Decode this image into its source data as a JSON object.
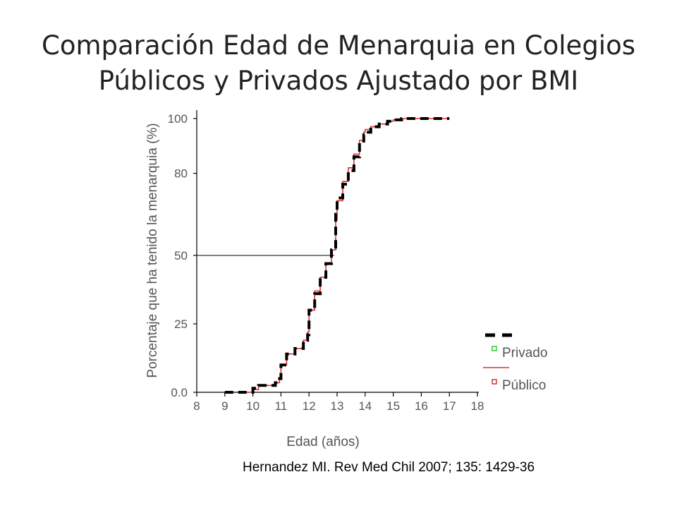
{
  "slide": {
    "title_line1": "Comparación Edad de Menarquia en Colegios",
    "title_line2": "Públicos y Privados Ajustado por BMI",
    "citation": "Hernandez MI. Rev Med Chil 2007; 135: 1429-36"
  },
  "chart_data": {
    "type": "line",
    "title": "",
    "xlabel": "Edad (años)",
    "ylabel": "Porcentaje que ha tenido la menarquia (%)",
    "xlim": [
      8,
      18
    ],
    "ylim": [
      0,
      100
    ],
    "x_ticks": [
      8,
      9,
      10,
      11,
      12,
      13,
      14,
      15,
      16,
      17,
      18
    ],
    "y_ticks": [
      0,
      25,
      50,
      80,
      100
    ],
    "y_tick_labels": [
      "0.0",
      "25",
      "50",
      "80",
      "100"
    ],
    "grid": false,
    "reference_line": {
      "y": 50,
      "x_end": 12.9
    },
    "legend": {
      "placement": "bottom-right",
      "entries": [
        "",
        "Privado",
        "",
        "Público"
      ]
    },
    "colors": {
      "privado": "#000000",
      "publico": "#e03030",
      "marker_privado": "#33cc33",
      "marker_publico": "#e03030",
      "axis": "#000000"
    },
    "series": [
      {
        "name": "Privado",
        "style": "black-dashed-step",
        "x": [
          9.0,
          9.6,
          9.8,
          10.0,
          10.2,
          10.5,
          10.8,
          10.95,
          11.0,
          11.2,
          11.5,
          11.8,
          11.95,
          12.0,
          12.2,
          12.4,
          12.6,
          12.8,
          12.95,
          13.0,
          13.2,
          13.4,
          13.6,
          13.8,
          13.95,
          14.0,
          14.2,
          14.5,
          14.8,
          15.0,
          15.3,
          15.6,
          16.0,
          17.0
        ],
        "y": [
          0,
          0,
          0,
          1.5,
          2.5,
          2.5,
          3.5,
          5,
          10,
          14,
          16,
          19,
          21,
          30,
          36,
          42,
          47,
          52,
          65,
          71,
          76,
          81,
          86,
          91,
          94,
          95,
          97,
          98,
          99,
          99.5,
          100,
          100,
          100,
          100
        ]
      },
      {
        "name": "Público",
        "style": "red-thin-step",
        "x": [
          9.7,
          9.9,
          10.0,
          10.2,
          10.5,
          10.8,
          10.95,
          11.0,
          11.2,
          11.5,
          11.8,
          11.95,
          12.0,
          12.2,
          12.4,
          12.6,
          12.8,
          12.95,
          13.0,
          13.2,
          13.4,
          13.6,
          13.8,
          13.95,
          14.0,
          14.2,
          14.5,
          14.8,
          15.0,
          15.3,
          15.6,
          16.0,
          17.0
        ],
        "y": [
          0,
          0,
          1,
          2.5,
          2.5,
          3.5,
          5,
          10,
          14,
          16,
          19,
          22,
          30,
          37,
          42,
          47,
          52,
          63,
          70,
          77,
          82,
          87,
          92,
          95,
          96,
          97,
          98,
          99,
          99.5,
          100,
          100,
          100,
          100
        ]
      }
    ]
  }
}
